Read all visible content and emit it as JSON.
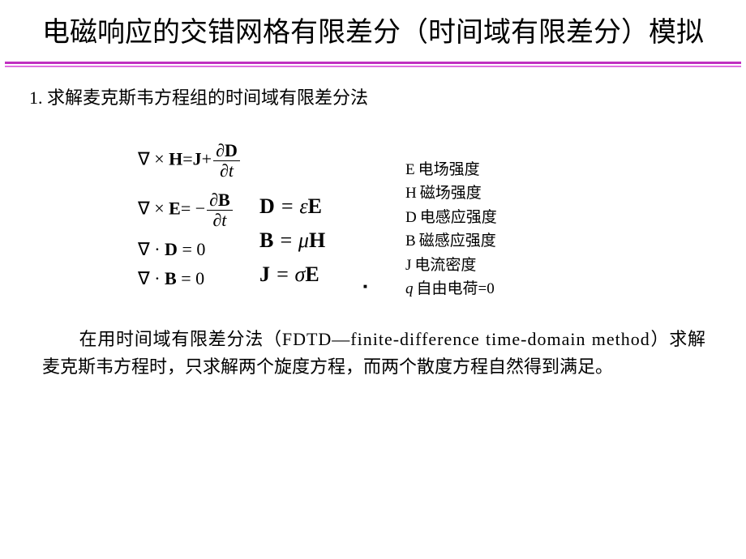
{
  "title": "电磁响应的交错网格有限差分（时间域有限差分）模拟",
  "hr_colors": {
    "top": "#c030c0",
    "bottom": "#e070e0"
  },
  "section_heading": "1. 求解麦克斯韦方程组的时间域有限差分法",
  "maxwell": {
    "curlH_lhs": "∇ × ",
    "curlH_H": "H",
    "curlH_mid": "=",
    "curlH_J": "J",
    "curlH_plus": "+",
    "curlH_num": "∂D",
    "curlH_den": "∂t",
    "curlE_lhs": "∇ × ",
    "curlE_E": "E",
    "curlE_mid": "= −",
    "curlE_num": "∂B",
    "curlE_den": "∂t",
    "divD": "∇ · D = 0",
    "divD_pre": "∇ · ",
    "divD_D": "D",
    "divD_post": " = 0",
    "divB_pre": "∇ · ",
    "divB_B": "B",
    "divB_post": " = 0"
  },
  "constitutive": {
    "D": "D",
    "eq1_mid": " = ε",
    "E": "E",
    "B": "B",
    "eq2_mid": " = μ",
    "H": "H",
    "J": "J",
    "eq3_mid": " = σ"
  },
  "legend": {
    "E_sym": "E",
    "E_txt": "电场强度",
    "H_sym": "H",
    "H_txt": "磁场强度",
    "D_sym": "D",
    "D_txt": "电感应强度",
    "B_sym": "B",
    "B_txt": "磁感应强度",
    "J_sym": "J",
    "J_txt": "电流密度",
    "q_sym": "q",
    "q_txt": "自由电荷=0"
  },
  "paragraph_pre": "　　在用时间域有限差分法（",
  "paragraph_lat": "FDTD—finite-difference time-domain method",
  "paragraph_post": "）求解麦克斯韦方程时，只求解两个旋度方程，而两个散度方程自然得到满足。"
}
